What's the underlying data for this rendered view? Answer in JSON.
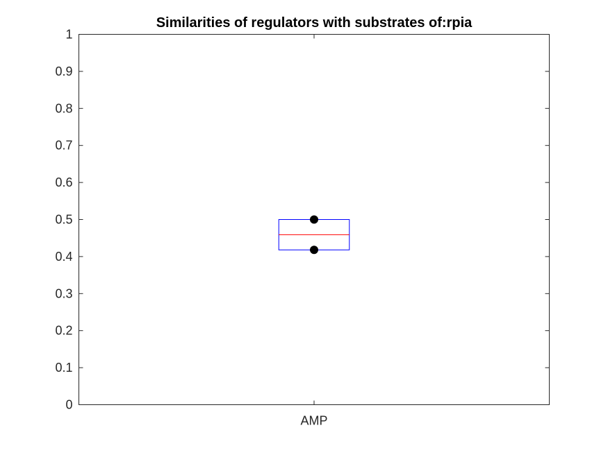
{
  "chart_data": {
    "type": "boxplot",
    "title": "Similarities of regulators with substrates of:rpia",
    "xlabel": "",
    "ylabel": "",
    "categories": [
      "AMP"
    ],
    "ylim": [
      0,
      1
    ],
    "yticks": [
      0,
      0.1,
      0.2,
      0.3,
      0.4,
      0.5,
      0.6,
      0.7,
      0.8,
      0.9,
      1
    ],
    "ytick_labels": [
      "0",
      "0.1",
      "0.2",
      "0.3",
      "0.4",
      "0.5",
      "0.6",
      "0.7",
      "0.8",
      "0.9",
      "1"
    ],
    "grid": false,
    "boxes": [
      {
        "category": "AMP",
        "q1": 0.418,
        "median": 0.459,
        "q3": 0.5,
        "points": [
          0.5,
          0.418
        ]
      }
    ],
    "colors": {
      "box": "#0000ff",
      "median": "#ff0000",
      "points": "#000000",
      "axes": "#262626"
    }
  }
}
